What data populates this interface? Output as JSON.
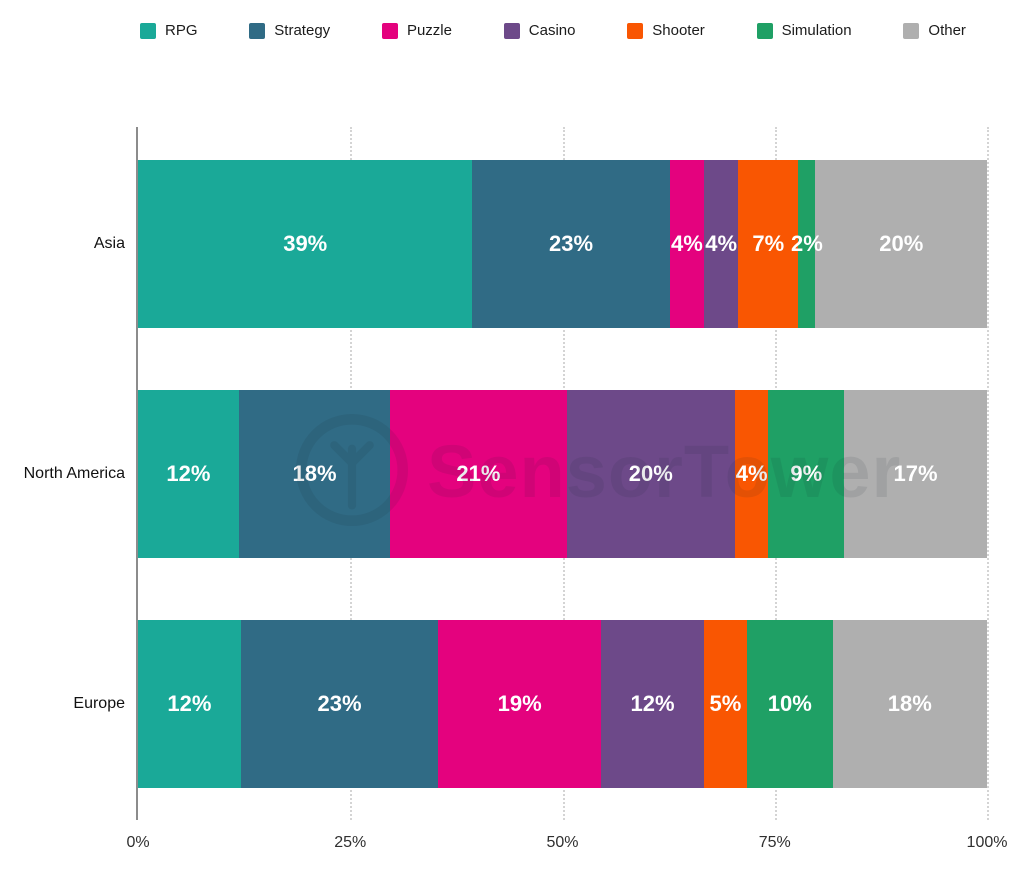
{
  "watermark": {
    "text": "SensorTower"
  },
  "chart_data": {
    "type": "bar",
    "stacked": true,
    "orientation": "horizontal",
    "title": "",
    "xlabel": "",
    "ylabel": "",
    "categories": [
      "Asia",
      "North America",
      "Europe"
    ],
    "series": [
      {
        "name": "RPG",
        "color": "#1aa998",
        "values": [
          39,
          12,
          12
        ]
      },
      {
        "name": "Strategy",
        "color": "#306b85",
        "values": [
          23,
          18,
          23
        ]
      },
      {
        "name": "Puzzle",
        "color": "#e4027e",
        "values": [
          4,
          21,
          19
        ]
      },
      {
        "name": "Casino",
        "color": "#6d4989",
        "values": [
          4,
          20,
          12
        ]
      },
      {
        "name": "Shooter",
        "color": "#f95602",
        "values": [
          7,
          4,
          5
        ]
      },
      {
        "name": "Simulation",
        "color": "#1fa065",
        "values": [
          2,
          9,
          10
        ]
      },
      {
        "name": "Other",
        "color": "#afafaf",
        "values": [
          20,
          17,
          18
        ]
      }
    ],
    "value_suffix": "%",
    "x_ticks": [
      "0%",
      "25%",
      "50%",
      "75%",
      "100%"
    ],
    "xlim": [
      0,
      100
    ],
    "grid": "dotted-vertical",
    "legend_position": "top"
  }
}
